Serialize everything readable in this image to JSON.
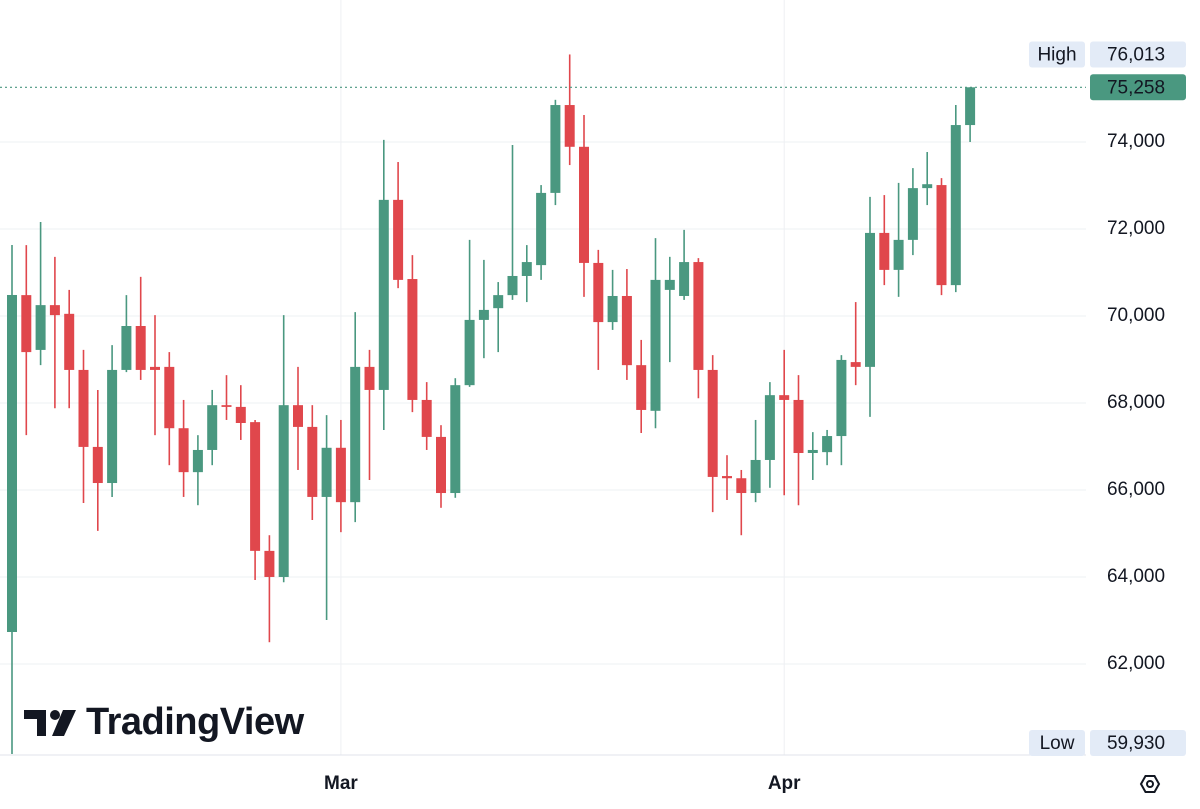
{
  "chart_data": {
    "type": "candlestick",
    "categories": [
      null,
      null,
      null,
      null,
      null,
      null,
      null,
      null,
      null,
      null,
      null,
      null,
      null,
      null,
      null,
      null,
      null,
      null,
      null,
      null,
      null,
      null,
      null,
      "Mar",
      null,
      null,
      null,
      null,
      null,
      null,
      null,
      null,
      null,
      null,
      null,
      null,
      null,
      null,
      null,
      null,
      null,
      null,
      null,
      null,
      null,
      null,
      null,
      null,
      null,
      null,
      null,
      null,
      null,
      null,
      "Apr",
      null,
      null,
      null,
      null,
      null,
      null,
      null,
      null,
      null,
      null,
      null,
      null,
      null
    ],
    "open": [
      62735,
      70480,
      69220,
      70250,
      70050,
      68760,
      66990,
      66160,
      68760,
      69770,
      68830,
      68830,
      67420,
      66410,
      66920,
      67950,
      67910,
      67560,
      64600,
      64000,
      67950,
      67450,
      65840,
      66970,
      65720,
      68830,
      68300,
      72670,
      70850,
      68070,
      67220,
      65930,
      68410,
      69910,
      70180,
      70480,
      70920,
      71170,
      72830,
      74850,
      73890,
      71220,
      69860,
      70460,
      68870,
      67820,
      70600,
      70460,
      71240,
      68760,
      66320,
      66270,
      65930,
      66690,
      68180,
      68070,
      66850,
      66870,
      67240,
      68940,
      68830,
      71910,
      71060,
      71750,
      72940,
      73010,
      70710,
      74390
    ],
    "high": [
      71632,
      71630,
      72160,
      71360,
      70600,
      69220,
      68300,
      69330,
      70480,
      70900,
      70020,
      69170,
      68070,
      67260,
      68300,
      68640,
      68410,
      67610,
      64960,
      70020,
      68830,
      67950,
      67720,
      67610,
      70090,
      69220,
      74050,
      73540,
      71400,
      68480,
      67490,
      68570,
      71750,
      71290,
      70780,
      73930,
      71630,
      73010,
      74970,
      76013,
      74620,
      71520,
      71060,
      71080,
      69450,
      71790,
      71360,
      71980,
      71330,
      69100,
      66800,
      66460,
      67610,
      68480,
      69220,
      68640,
      67330,
      67380,
      69100,
      70320,
      72740,
      72780,
      73060,
      73400,
      73770,
      73170,
      74850,
      75258
    ],
    "low": [
      59930,
      67260,
      68870,
      67880,
      67880,
      65700,
      65060,
      65840,
      68710,
      68530,
      67260,
      66570,
      65840,
      65650,
      66570,
      67610,
      67150,
      63930,
      62500,
      63880,
      66460,
      65310,
      63010,
      65030,
      65260,
      66230,
      67380,
      70640,
      67790,
      66920,
      65590,
      65820,
      68370,
      69030,
      69170,
      70370,
      70320,
      70830,
      72550,
      73470,
      70440,
      68760,
      69680,
      68530,
      67310,
      67420,
      68940,
      70370,
      68110,
      65490,
      65770,
      64960,
      65720,
      66050,
      65880,
      65650,
      66230,
      66570,
      66570,
      68410,
      67680,
      70710,
      70440,
      71400,
      72550,
      70480,
      70550,
      74000
    ],
    "close": [
      70483,
      69170,
      70250,
      70020,
      68760,
      66990,
      66160,
      68760,
      69770,
      68760,
      68760,
      67420,
      66410,
      66920,
      67950,
      67910,
      67540,
      64600,
      64000,
      67950,
      67450,
      65840,
      66970,
      65720,
      68830,
      68300,
      72670,
      70830,
      68070,
      67220,
      65930,
      68410,
      69910,
      70140,
      70480,
      70920,
      71240,
      72830,
      74850,
      73890,
      71220,
      69860,
      70460,
      68870,
      67840,
      70830,
      70830,
      71240,
      68760,
      66300,
      66270,
      65930,
      66690,
      68180,
      68070,
      66850,
      66920,
      67240,
      68990,
      68830,
      71910,
      71060,
      71750,
      72940,
      73030,
      70710,
      74390,
      75258
    ],
    "up_color": "#4a9880",
    "down_color": "#e0474c",
    "ylim": [
      59907,
      77265
    ],
    "yticks": [
      {
        "value": 62000,
        "label": "62,000"
      },
      {
        "value": 64000,
        "label": "64,000"
      },
      {
        "value": 66000,
        "label": "66,000"
      },
      {
        "value": 68000,
        "label": "68,000"
      },
      {
        "value": 70000,
        "label": "70,000"
      },
      {
        "value": 72000,
        "label": "72,000"
      },
      {
        "value": 74000,
        "label": "74,000"
      }
    ],
    "grid": true,
    "high_marker": {
      "label": "High",
      "value": 76013,
      "value_label": "76,013"
    },
    "low_marker": {
      "label": "Low",
      "value": 59930,
      "value_label": "59,930"
    },
    "last_price": {
      "value": 75258,
      "value_label": "75,258"
    },
    "brand": "TradingView"
  }
}
